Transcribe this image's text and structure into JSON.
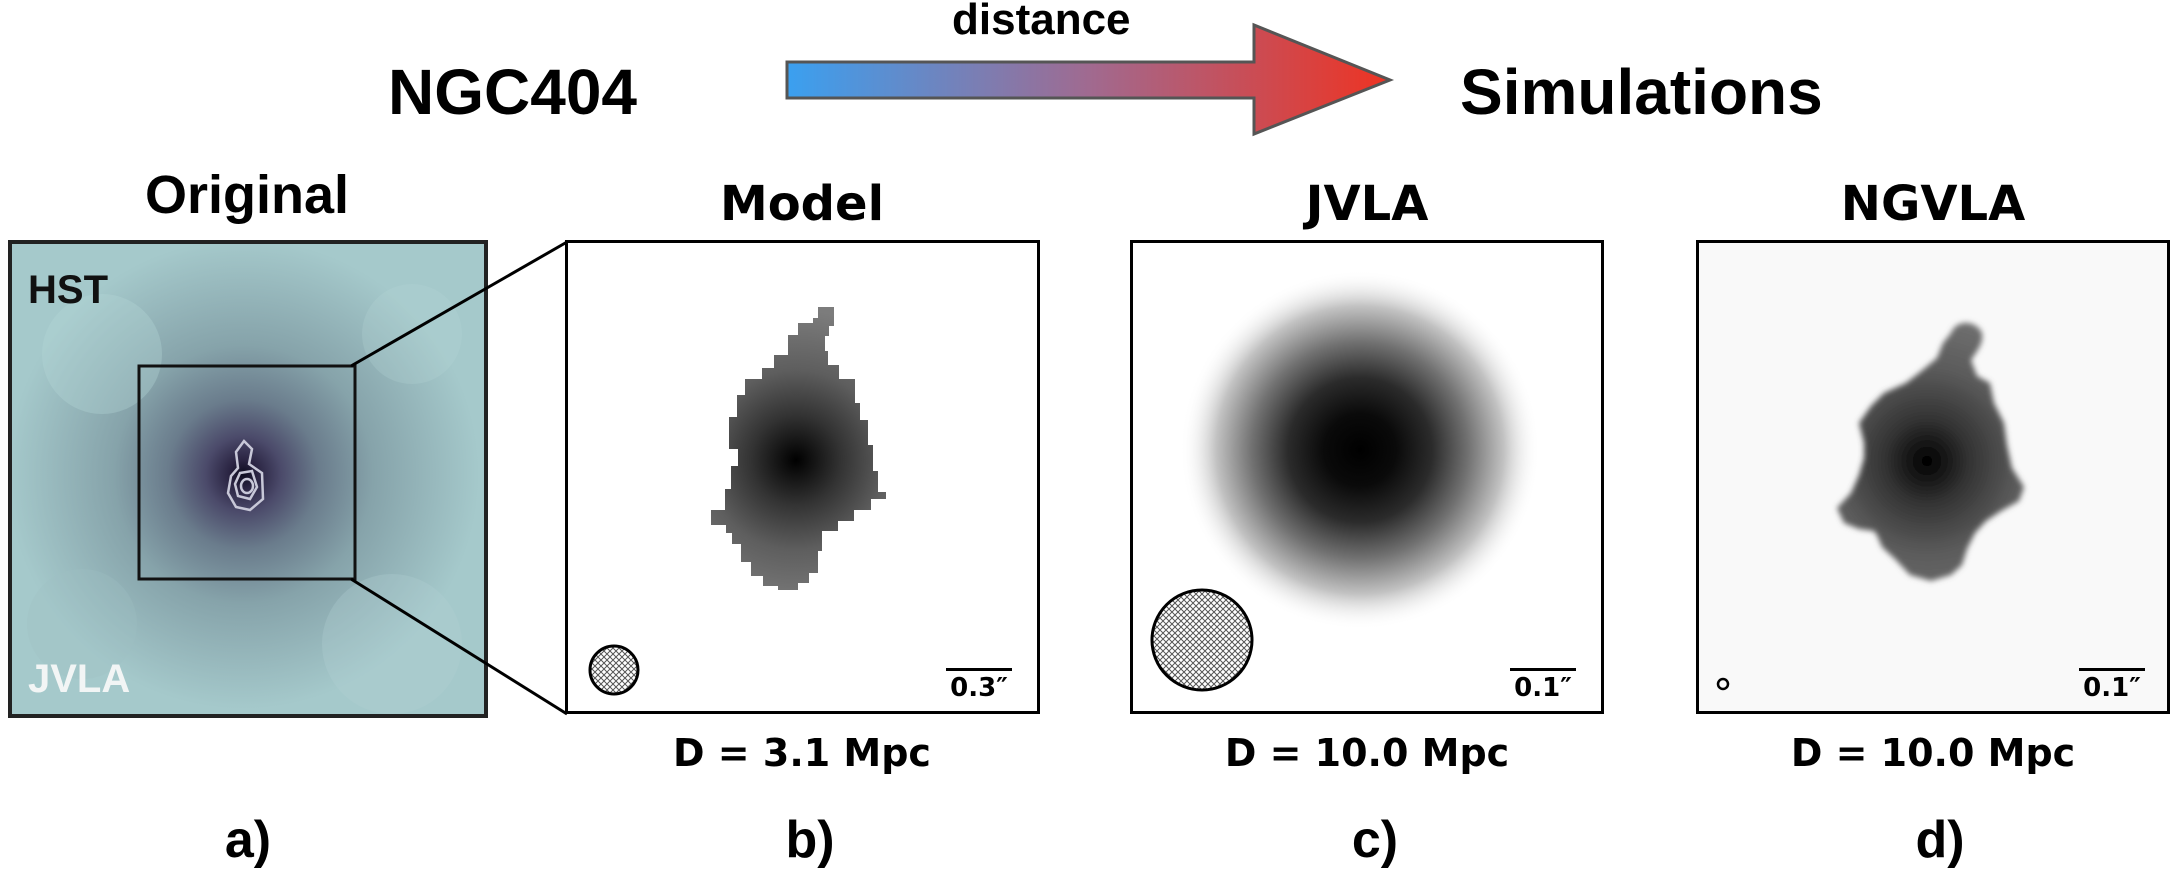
{
  "header": {
    "left_title": "NGC404",
    "right_title": "Simulations",
    "arrow_label": "distance",
    "arrow_colors": {
      "start": "#3aa0f0",
      "end": "#ee3322"
    }
  },
  "panels": {
    "original": {
      "title": "Original",
      "top_label": "HST",
      "bottom_label": "JVLA",
      "letter": "a)"
    },
    "model": {
      "title": "Model",
      "scale_bar": "0.3″",
      "distance": "D = 3.1 Mpc",
      "letter": "b)"
    },
    "jvla": {
      "title": "JVLA",
      "scale_bar": "0.1″",
      "distance": "D = 10.0 Mpc",
      "letter": "c)"
    },
    "ngvla": {
      "title": "NGVLA",
      "scale_bar": "0.1″",
      "distance": "D = 10.0 Mpc",
      "letter": "d)"
    }
  }
}
